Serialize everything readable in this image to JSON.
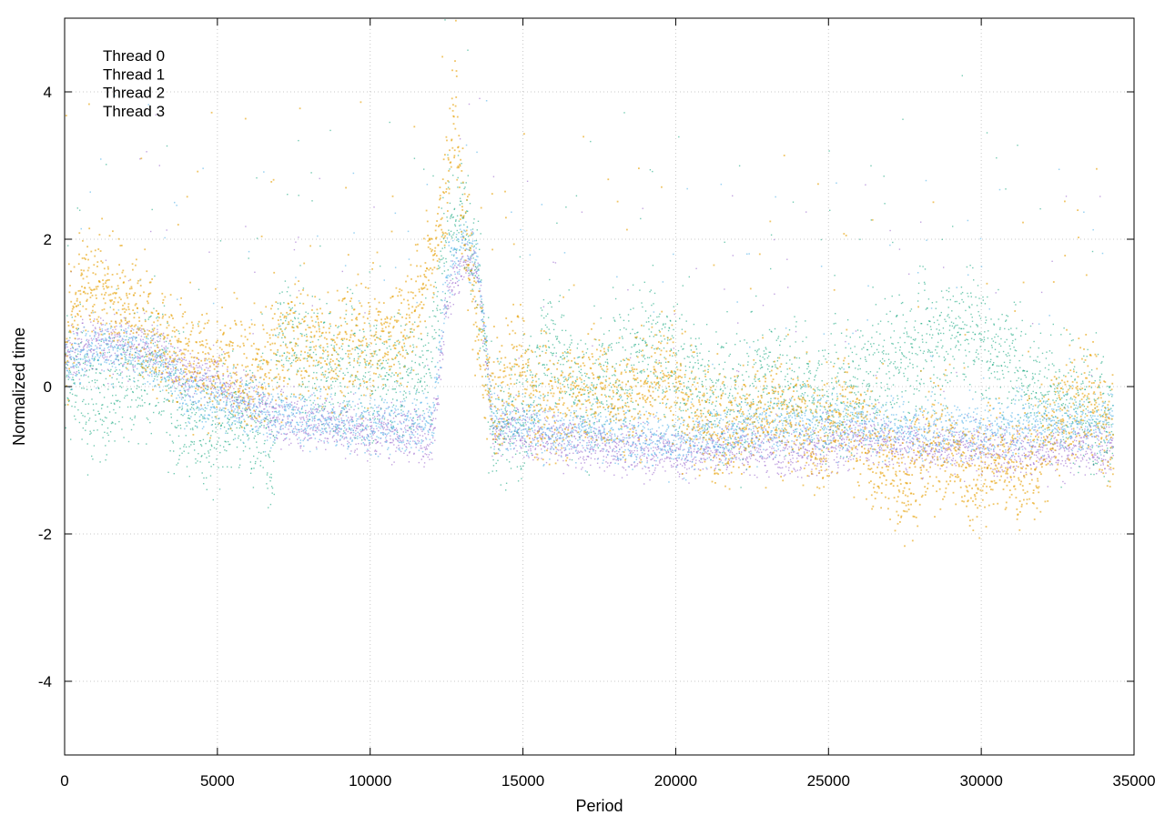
{
  "chart_data": {
    "type": "scatter",
    "title": "",
    "xlabel": "Period",
    "ylabel": "Normalized time",
    "xlim": [
      0,
      35000
    ],
    "ylim": [
      -5,
      5
    ],
    "x_ticks": [
      0,
      5000,
      10000,
      15000,
      20000,
      25000,
      30000,
      35000
    ],
    "x_tick_labels": [
      "0",
      "5000",
      "10000",
      "15000",
      "20000",
      "25000",
      "30000",
      "35000"
    ],
    "y_ticks": [
      -4,
      -2,
      0,
      2,
      4
    ],
    "y_tick_labels": [
      "-4",
      "-2",
      "0",
      "2",
      "4"
    ],
    "grid": true,
    "legend_position": "top-left",
    "x_max_period": 34300,
    "series": [
      {
        "name": "Thread 0",
        "color": "#9966cc",
        "profile": {
          "x": [
            0,
            1000,
            2000,
            3000,
            4000,
            5000,
            6000,
            7000,
            8000,
            9000,
            10000,
            11000,
            12000,
            12500,
            13000,
            13500,
            14000,
            15000,
            16000,
            18000,
            20000,
            22000,
            24000,
            26000,
            28000,
            30000,
            32000,
            34300
          ],
          "y": [
            0.4,
            0.6,
            0.6,
            0.5,
            0.1,
            0.1,
            -0.2,
            -0.4,
            -0.5,
            -0.5,
            -0.6,
            -0.6,
            -0.7,
            1.2,
            1.7,
            1.6,
            -0.6,
            -0.6,
            -0.7,
            -0.8,
            -0.9,
            -0.8,
            -0.9,
            -0.7,
            -0.8,
            -0.8,
            -0.9,
            -0.8
          ]
        }
      },
      {
        "name": "Thread 1",
        "color": "#009e73",
        "profile": {
          "x": [
            0,
            1000,
            2000,
            3000,
            4000,
            5000,
            6000,
            6800,
            7000,
            8000,
            9000,
            10000,
            11000,
            12000,
            12500,
            13000,
            13500,
            14000,
            15000,
            15800,
            17000,
            19000,
            20000,
            22000,
            23000,
            25000,
            27000,
            28000,
            29500,
            31000,
            32500,
            34300
          ],
          "y": [
            0.2,
            -0.2,
            0.1,
            0.3,
            -0.6,
            -0.5,
            -0.4,
            -0.9,
            0.8,
            0.3,
            0.2,
            0.2,
            0.1,
            0.4,
            2.2,
            2.5,
            1.5,
            -0.6,
            -0.3,
            0.7,
            -0.2,
            0.6,
            0.3,
            -0.3,
            0.2,
            -0.2,
            0.3,
            0.5,
            0.8,
            0.3,
            -0.2,
            -0.3
          ]
        }
      },
      {
        "name": "Thread 2",
        "color": "#56b4e9",
        "profile": {
          "x": [
            0,
            1000,
            2000,
            3000,
            4000,
            5000,
            6000,
            7000,
            8000,
            9000,
            10000,
            11000,
            12000,
            12500,
            13000,
            13500,
            14000,
            15000,
            16000,
            18000,
            20000,
            22000,
            24000,
            26000,
            28000,
            30000,
            32000,
            34300
          ],
          "y": [
            0.3,
            0.5,
            0.5,
            0.4,
            -0.1,
            -0.2,
            -0.3,
            -0.4,
            -0.4,
            -0.5,
            -0.5,
            -0.5,
            -0.5,
            1.5,
            2.0,
            1.7,
            -0.5,
            -0.5,
            -0.6,
            -0.6,
            -0.8,
            -0.6,
            -0.5,
            -0.5,
            -0.6,
            -0.6,
            -0.5,
            -0.5
          ]
        }
      },
      {
        "name": "Thread 3",
        "color": "#e69f00",
        "profile": {
          "x": [
            0,
            500,
            1500,
            2500,
            3500,
            4500,
            5500,
            6500,
            7500,
            8500,
            9500,
            10500,
            11500,
            12300,
            12700,
            13000,
            13500,
            14000,
            14800,
            15500,
            16500,
            17500,
            18500,
            19500,
            20500,
            21500,
            22500,
            23500,
            24500,
            25500,
            26500,
            27500,
            28500,
            29500,
            30500,
            31500,
            32500,
            33500,
            34300
          ],
          "y": [
            0.6,
            1.5,
            1.2,
            1.0,
            0.5,
            0.3,
            0.2,
            0.3,
            0.7,
            0.5,
            0.6,
            0.6,
            1.1,
            2.2,
            3.6,
            2.5,
            0.7,
            -0.3,
            0.4,
            -0.3,
            -0.1,
            0.0,
            -0.2,
            0.3,
            -0.3,
            -0.5,
            -0.4,
            -0.3,
            -0.7,
            -0.3,
            -0.9,
            -1.3,
            -0.7,
            -1.2,
            -1.0,
            -1.2,
            -0.4,
            -0.1,
            -0.7
          ]
        }
      }
    ]
  }
}
